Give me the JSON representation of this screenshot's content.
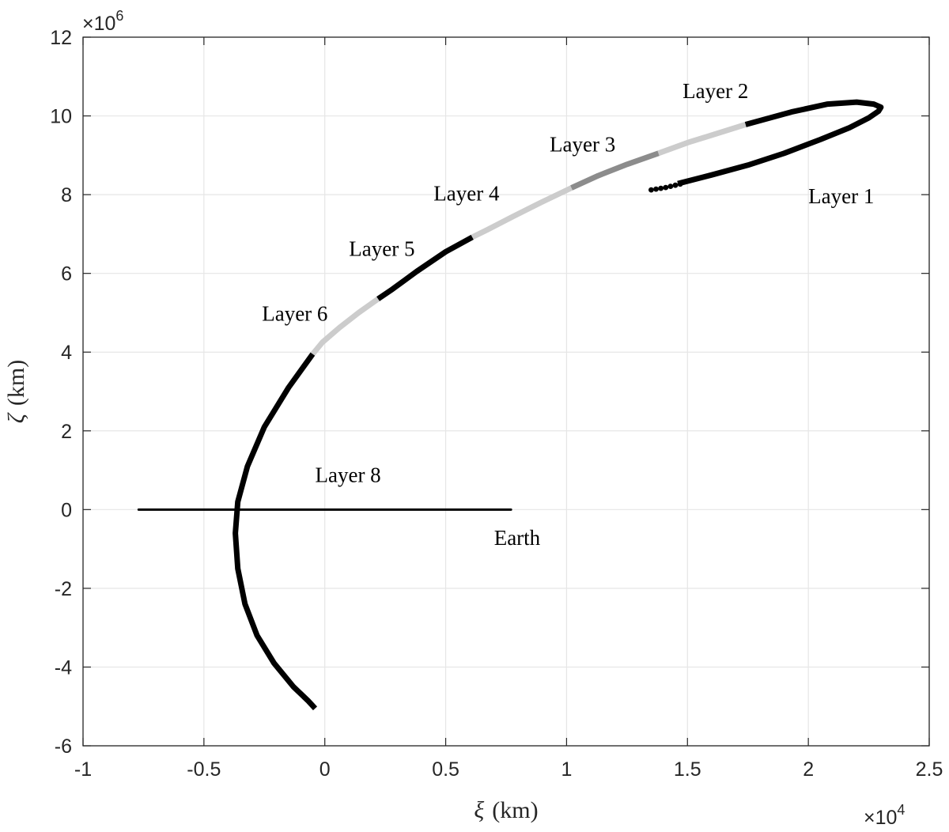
{
  "chart_data": {
    "type": "line",
    "xlabel_symbol": "ξ",
    "xlabel_unit": "(km)",
    "ylabel_symbol": "ζ",
    "ylabel_unit": "(km)",
    "x_exponent_base": "×10",
    "x_exponent_power": "4",
    "y_exponent_base": "×10",
    "y_exponent_power": "6",
    "xlim": [
      -1,
      2.5
    ],
    "ylim": [
      -6,
      12
    ],
    "x_ticks": [
      -1,
      -0.5,
      0,
      0.5,
      1,
      1.5,
      2,
      2.5
    ],
    "x_tick_labels": [
      "-1",
      "-0.5",
      "0",
      "0.5",
      "1",
      "1.5",
      "2",
      "2.5"
    ],
    "y_ticks": [
      -6,
      -4,
      -2,
      0,
      2,
      4,
      6,
      8,
      10,
      12
    ],
    "y_tick_labels": [
      "-6",
      "-4",
      "-2",
      "0",
      "2",
      "4",
      "6",
      "8",
      "10",
      "12"
    ],
    "grid": true,
    "earth_segment": {
      "x": [
        -0.77,
        0.77
      ],
      "y": [
        0,
        0
      ],
      "color": "#000000"
    },
    "trajectory": [
      {
        "x": [
          1.46,
          1.6,
          1.75,
          1.9,
          2.05,
          2.17,
          2.25,
          2.29,
          2.3,
          2.27,
          2.2,
          2.08,
          1.93,
          1.8,
          1.74
        ],
        "y": [
          8.28,
          8.5,
          8.75,
          9.05,
          9.4,
          9.7,
          9.95,
          10.12,
          10.22,
          10.3,
          10.35,
          10.3,
          10.1,
          9.88,
          9.78
        ],
        "color": "#000000"
      },
      {
        "x": [
          1.74,
          1.62,
          1.5,
          1.38
        ],
        "y": [
          9.78,
          9.55,
          9.32,
          9.05
        ],
        "color": "#cccccc"
      },
      {
        "x": [
          1.38,
          1.25,
          1.13,
          1.02
        ],
        "y": [
          9.05,
          8.77,
          8.48,
          8.17
        ],
        "color": "#8c8c8c"
      },
      {
        "x": [
          1.02,
          0.9,
          0.78,
          0.67,
          0.61
        ],
        "y": [
          8.17,
          7.82,
          7.45,
          7.1,
          6.92
        ],
        "color": "#cccccc"
      },
      {
        "x": [
          0.61,
          0.5,
          0.38,
          0.28,
          0.22
        ],
        "y": [
          6.92,
          6.55,
          6.05,
          5.6,
          5.35
        ],
        "color": "#000000"
      },
      {
        "x": [
          0.22,
          0.14,
          0.06,
          -0.01,
          -0.05
        ],
        "y": [
          5.35,
          5.0,
          4.62,
          4.25,
          3.95
        ],
        "color": "#cccccc"
      },
      {
        "x": [
          -0.05,
          -0.15,
          -0.25,
          -0.32,
          -0.36,
          -0.37,
          -0.36,
          -0.33,
          -0.28,
          -0.21,
          -0.13,
          -0.07,
          -0.04
        ],
        "y": [
          3.95,
          3.1,
          2.1,
          1.1,
          0.2,
          -0.6,
          -1.5,
          -2.4,
          -3.2,
          -3.9,
          -4.5,
          -4.85,
          -5.05
        ],
        "color": "#000000"
      }
    ],
    "trajectory_tail_dots": {
      "x": [
        1.35,
        1.37,
        1.39,
        1.41,
        1.43,
        1.45,
        1.47
      ],
      "y": [
        8.12,
        8.14,
        8.16,
        8.18,
        8.21,
        8.24,
        8.27
      ],
      "color": "#000000"
    },
    "annotations": [
      {
        "text": "Layer 1",
        "x": 2.0,
        "y": 7.78
      },
      {
        "text": "Layer 2",
        "x": 1.48,
        "y": 10.45
      },
      {
        "text": "Layer 3",
        "x": 0.93,
        "y": 9.1
      },
      {
        "text": "Layer 4",
        "x": 0.45,
        "y": 7.85
      },
      {
        "text": "Layer 5",
        "x": 0.1,
        "y": 6.45
      },
      {
        "text": "Layer 6",
        "x": -0.26,
        "y": 4.8
      },
      {
        "text": "Layer 8",
        "x": -0.04,
        "y": 0.7
      },
      {
        "text": "Earth",
        "x": 0.7,
        "y": -0.9
      }
    ]
  }
}
